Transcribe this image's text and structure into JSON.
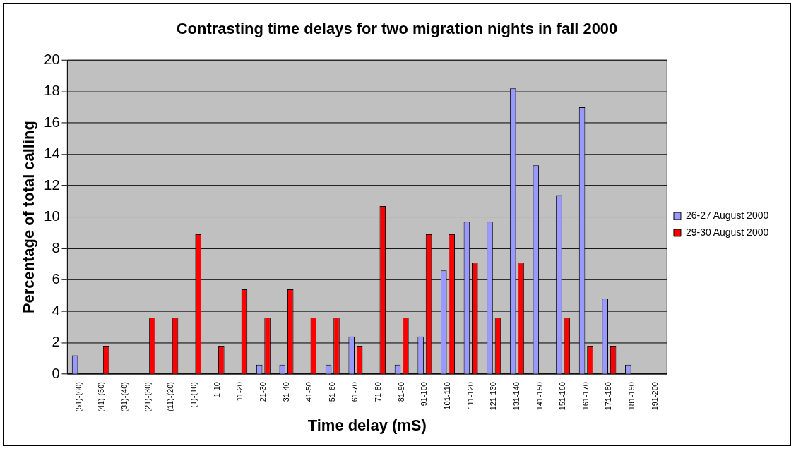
{
  "chart_data": {
    "type": "bar",
    "title": "Contrasting time delays for two migration nights in fall 2000",
    "xlabel": "Time delay (mS)",
    "ylabel": "Percentage of total calling",
    "categories": [
      "(51)-(60)",
      "(41)-(50)",
      "(31)-(40)",
      "(21)-(30)",
      "(11)-(20)",
      "(1)-(10)",
      "1-10",
      "11-20",
      "21-30",
      "31-40",
      "41-50",
      "51-60",
      "61-70",
      "71-80",
      "81-90",
      "91-100",
      "101-110",
      "111-120",
      "121-130",
      "131-140",
      "141-150",
      "151-160",
      "161-170",
      "171-180",
      "181-190",
      "191-200"
    ],
    "series": [
      {
        "name": "26-27 August 2000",
        "color": "#9999ff",
        "values": [
          1.2,
          0,
          0,
          0,
          0,
          0,
          0,
          0,
          0.6,
          0.6,
          0,
          0.6,
          2.4,
          0,
          0.6,
          2.4,
          6.6,
          9.7,
          9.7,
          18.2,
          13.3,
          11.4,
          17,
          4.8,
          0.6,
          0
        ]
      },
      {
        "name": "29-30 August 2000",
        "color": "#ff0000",
        "values": [
          0,
          1.8,
          0,
          3.6,
          3.6,
          8.9,
          1.8,
          5.4,
          3.6,
          5.4,
          3.6,
          3.6,
          1.8,
          10.7,
          3.6,
          8.9,
          8.9,
          7.1,
          3.6,
          7.1,
          0,
          3.6,
          1.8,
          1.8,
          0,
          0
        ]
      }
    ],
    "ylim": [
      0,
      20
    ],
    "yticks": [
      0,
      2,
      4,
      6,
      8,
      10,
      12,
      14,
      16,
      18,
      20
    ],
    "grid": "y",
    "legend": "right"
  }
}
